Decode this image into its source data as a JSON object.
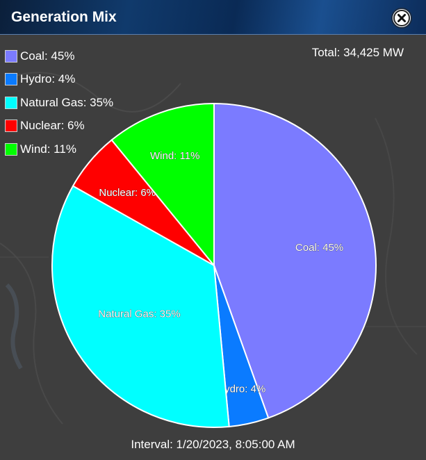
{
  "window": {
    "title": "Generation Mix",
    "close_icon": "close-circle-icon"
  },
  "total": "Total: 34,425 MW",
  "interval": "Interval: 1/20/2023, 8:05:00 AM",
  "legend": [
    {
      "label": "Coal: 45%",
      "color": "#7b7bff"
    },
    {
      "label": "Hydro: 4%",
      "color": "#0a7bff"
    },
    {
      "label": "Natural Gas: 35%",
      "color": "#00ffff"
    },
    {
      "label": "Nuclear: 6%",
      "color": "#ff0000"
    },
    {
      "label": "Wind: 11%",
      "color": "#00ff00"
    }
  ],
  "chart_data": {
    "type": "pie",
    "categories": [
      "Coal",
      "Hydro",
      "Natural Gas",
      "Nuclear",
      "Wind"
    ],
    "values": [
      45,
      4,
      35,
      6,
      11
    ],
    "colors": [
      "#7b7bff",
      "#0a7bff",
      "#00ffff",
      "#ff0000",
      "#00ff00"
    ],
    "data_labels": [
      "Coal: 45%",
      "Hydro: 4%",
      "Natural Gas: 35%",
      "Nuclear: 6%",
      "Wind: 11%"
    ],
    "start": "top",
    "direction": "clockwise",
    "legend_position": "top-left"
  }
}
